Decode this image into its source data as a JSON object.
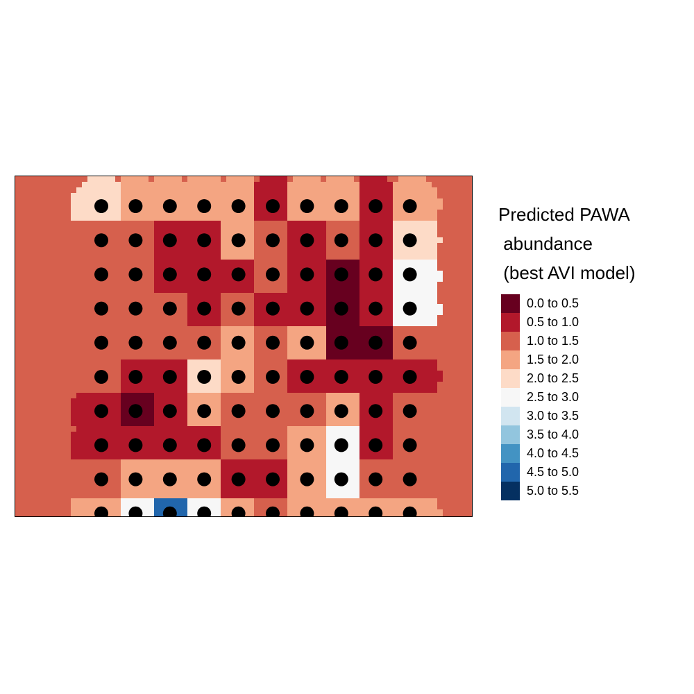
{
  "legend": {
    "title_lines": [
      "Predicted PAWA",
      " abundance",
      " (best AVI model)"
    ],
    "classes": [
      {
        "label": "0.0 to 0.5",
        "color": "#67001f"
      },
      {
        "label": "0.5 to 1.0",
        "color": "#b2182b"
      },
      {
        "label": "1.0 to 1.5",
        "color": "#d6604d"
      },
      {
        "label": "1.5 to 2.0",
        "color": "#f4a582"
      },
      {
        "label": "2.0 to 2.5",
        "color": "#fddbc7"
      },
      {
        "label": "2.5 to 3.0",
        "color": "#f7f7f7"
      },
      {
        "label": "3.0 to 3.5",
        "color": "#d1e5f0"
      },
      {
        "label": "3.5 to 4.0",
        "color": "#92c5de"
      },
      {
        "label": "4.0 to 4.5",
        "color": "#4393c3"
      },
      {
        "label": "4.5 to 5.0",
        "color": "#2166ac"
      },
      {
        "label": "5.0 to 5.5",
        "color": "#053061"
      }
    ]
  },
  "map": {
    "grid_rows": 10,
    "grid_cols": 10,
    "dot_color": "#000000",
    "predicted_class_grid": [
      [
        4,
        3,
        3,
        3,
        3,
        1,
        3,
        3,
        1,
        3
      ],
      [
        2,
        2,
        1,
        1,
        3,
        2,
        1,
        2,
        1,
        4
      ],
      [
        2,
        2,
        1,
        1,
        1,
        2,
        1,
        0,
        1,
        5
      ],
      [
        2,
        2,
        2,
        1,
        2,
        1,
        1,
        0,
        1,
        5
      ],
      [
        2,
        2,
        2,
        2,
        3,
        2,
        3,
        0,
        0,
        2
      ],
      [
        2,
        1,
        1,
        4,
        3,
        2,
        1,
        1,
        1,
        1
      ],
      [
        1,
        0,
        1,
        3,
        2,
        2,
        2,
        3,
        1,
        2
      ],
      [
        1,
        1,
        1,
        1,
        2,
        2,
        3,
        5,
        1,
        2
      ],
      [
        2,
        3,
        3,
        3,
        1,
        1,
        3,
        5,
        2,
        2
      ],
      [
        3,
        5,
        9,
        5,
        3,
        2,
        3,
        3,
        3,
        3
      ]
    ]
  }
}
